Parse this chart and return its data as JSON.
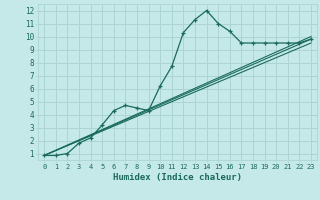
{
  "xlabel": "Humidex (Indice chaleur)",
  "xlim": [
    -0.5,
    23.5
  ],
  "ylim": [
    0.5,
    12.5
  ],
  "xticks": [
    0,
    1,
    2,
    3,
    4,
    5,
    6,
    7,
    8,
    9,
    10,
    11,
    12,
    13,
    14,
    15,
    16,
    17,
    18,
    19,
    20,
    21,
    22,
    23
  ],
  "yticks": [
    1,
    2,
    3,
    4,
    5,
    6,
    7,
    8,
    9,
    10,
    11,
    12
  ],
  "background_color": "#c5e8e8",
  "grid_color": "#add4d4",
  "line_color": "#1a6b5a",
  "main_line": {
    "x": [
      0,
      1,
      2,
      3,
      4,
      5,
      6,
      7,
      8,
      9,
      10,
      11,
      12,
      13,
      14,
      15,
      16,
      17,
      18,
      19,
      20,
      21,
      22,
      23
    ],
    "y": [
      0.85,
      0.85,
      1.0,
      1.8,
      2.2,
      3.2,
      4.3,
      4.7,
      4.5,
      4.3,
      6.2,
      7.7,
      10.3,
      11.3,
      12.0,
      11.0,
      10.4,
      9.5,
      9.5,
      9.5,
      9.5,
      9.5,
      9.5,
      9.8
    ]
  },
  "straight_lines": [
    {
      "x": [
        0,
        23
      ],
      "y": [
        0.85,
        9.5
      ]
    },
    {
      "x": [
        0,
        23
      ],
      "y": [
        0.85,
        9.8
      ]
    },
    {
      "x": [
        0,
        23
      ],
      "y": [
        0.85,
        10.0
      ]
    }
  ]
}
